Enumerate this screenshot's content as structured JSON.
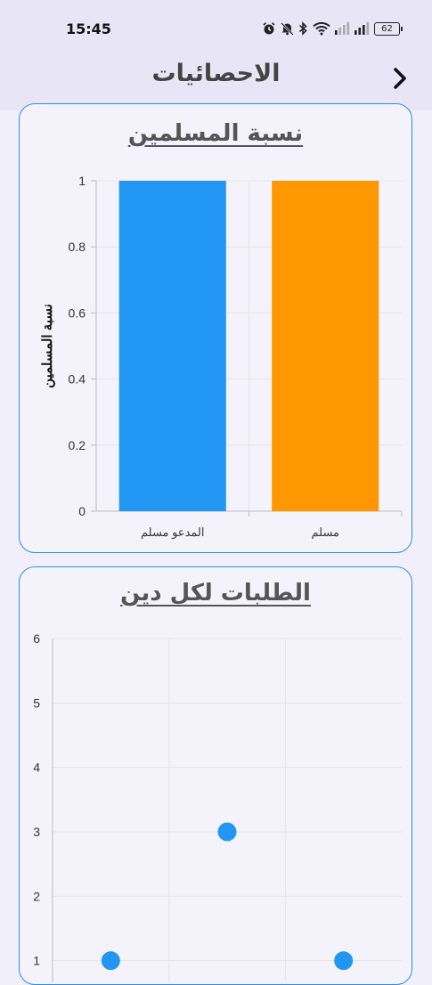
{
  "status_bar": {
    "time": "15:45",
    "battery": "62",
    "icons": [
      "alarm-icon",
      "mute-icon",
      "bluetooth-icon",
      "wifi-icon",
      "signal-icon",
      "signal-icon",
      "battery-icon"
    ]
  },
  "app_bar": {
    "title": "الاحصائيات",
    "back_icon": "chevron-right-icon"
  },
  "colors": {
    "accent": "#2196f3",
    "orange": "#ff9800",
    "card_border": "#2a8de6"
  },
  "chart_data": [
    {
      "type": "bar",
      "title": "نسبة المسلمين",
      "ylabel": "نسبة المسلمين",
      "xlabel": "",
      "categories": [
        "المدعو مسلم",
        "مسلم"
      ],
      "values": [
        1,
        1
      ],
      "bar_colors": [
        "#2196f3",
        "#ff9800"
      ],
      "ylim": [
        0,
        1
      ],
      "yticks": [
        "0",
        "0.2",
        "0.4",
        "0.6",
        "0.8",
        "1"
      ],
      "grid": true
    },
    {
      "type": "scatter",
      "title": "الطلبات لكل دين",
      "xlabel": "",
      "ylabel": "",
      "points": [
        {
          "x": 0,
          "y": 1
        },
        {
          "x": 1,
          "y": 3
        },
        {
          "x": 2,
          "y": 1
        }
      ],
      "ylim": [
        0,
        6
      ],
      "yticks": [
        "1",
        "2",
        "3",
        "4",
        "5",
        "6"
      ],
      "point_color": "#2196f3",
      "grid": true
    }
  ]
}
